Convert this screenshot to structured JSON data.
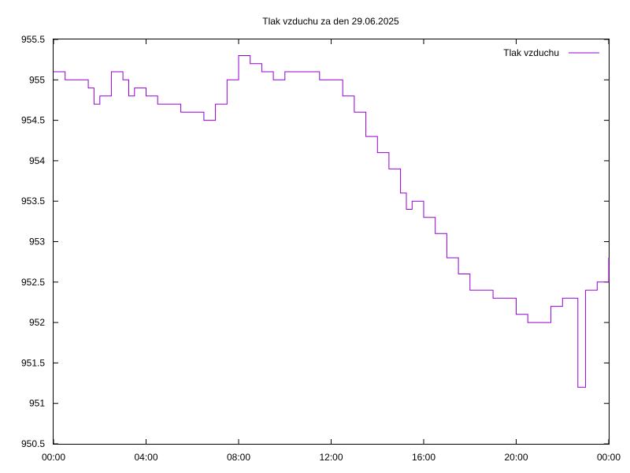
{
  "chart_data": {
    "type": "line",
    "title": "Tlak vzduchu za den 29.06.2025",
    "xlabel": "",
    "ylabel": "",
    "xlim": [
      "00:00",
      "24:00"
    ],
    "ylim": [
      950.5,
      955.5
    ],
    "x_tick_labels": [
      "00:00",
      "04:00",
      "08:00",
      "12:00",
      "16:00",
      "20:00",
      "00:00"
    ],
    "y_tick_labels": [
      "950.5",
      "951",
      "951.5",
      "952",
      "952.5",
      "953",
      "953.5",
      "954",
      "954.5",
      "955",
      "955.5"
    ],
    "grid": false,
    "legend_position": "top-right",
    "series_color": "#9400d3",
    "series": [
      {
        "name": "Tlak vzduchu",
        "x": [
          "00:00",
          "00:30",
          "01:00",
          "01:30",
          "01:45",
          "02:00",
          "02:30",
          "03:00",
          "03:15",
          "03:30",
          "04:00",
          "04:30",
          "05:00",
          "05:30",
          "06:00",
          "06:30",
          "07:00",
          "07:30",
          "08:00",
          "08:30",
          "09:00",
          "09:30",
          "10:00",
          "10:30",
          "11:00",
          "11:30",
          "12:00",
          "12:30",
          "13:00",
          "13:30",
          "14:00",
          "14:30",
          "15:00",
          "15:15",
          "15:30",
          "16:00",
          "16:30",
          "17:00",
          "17:30",
          "18:00",
          "18:30",
          "19:00",
          "19:30",
          "20:00",
          "20:30",
          "21:00",
          "21:30",
          "22:00",
          "22:30",
          "22:40",
          "23:00",
          "23:30",
          "24:00"
        ],
        "values": [
          955.1,
          955.0,
          955.0,
          954.9,
          954.7,
          954.8,
          955.1,
          955.0,
          954.8,
          954.9,
          954.8,
          954.7,
          954.7,
          954.6,
          954.6,
          954.5,
          954.7,
          955.0,
          955.3,
          955.2,
          955.1,
          955.0,
          955.1,
          955.1,
          955.1,
          955.0,
          955.0,
          954.8,
          954.6,
          954.3,
          954.1,
          953.9,
          953.6,
          953.4,
          953.5,
          953.3,
          953.1,
          952.8,
          952.6,
          952.4,
          952.4,
          952.3,
          952.3,
          952.1,
          952.0,
          952.0,
          952.2,
          952.3,
          952.3,
          951.2,
          952.4,
          952.5,
          952.8
        ]
      }
    ]
  }
}
